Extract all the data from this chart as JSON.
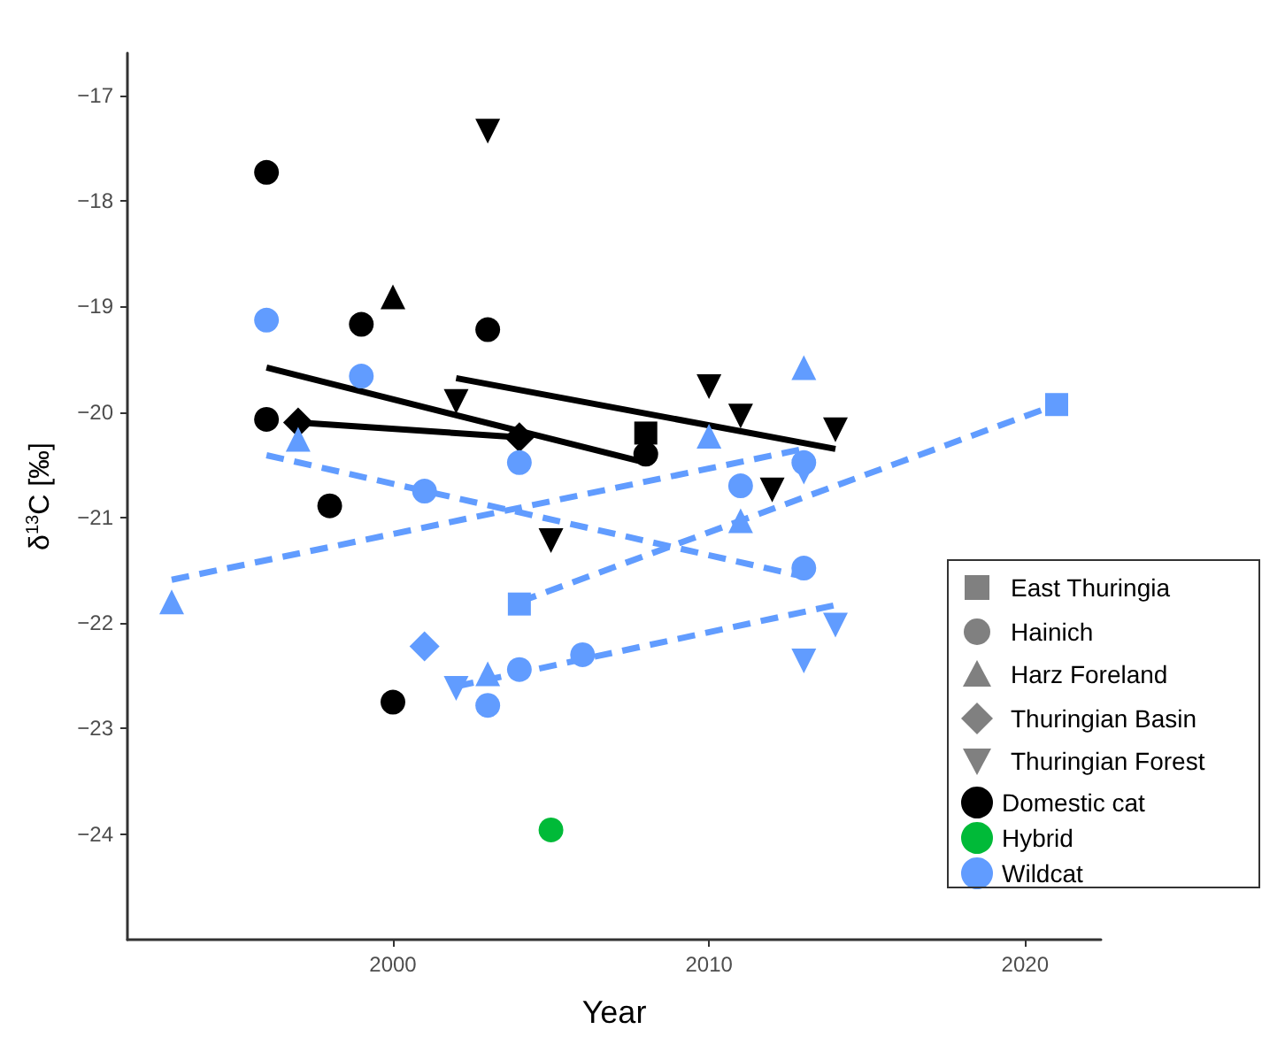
{
  "chart_data": {
    "type": "scatter",
    "xlabel": "Year",
    "ylabel": "δ$^{13}$C [‰]",
    "xlim": [
      1991.6,
      2022.4
    ],
    "ylim": [
      -25,
      -16.6
    ],
    "xticks": [
      2000,
      2010,
      2020
    ],
    "yticks": [
      -24,
      -23,
      -22,
      -21,
      -20,
      -19,
      -18,
      -17
    ],
    "grid": false,
    "legend": "bottom right",
    "annotations": [
      "East Thuringia",
      "Hainich",
      "Harz Foreland",
      "Thuringian Basin",
      "Thuringian Forest"
    ],
    "series": [
      {
        "type": "line",
        "color": "#000000",
        "line_style": "solid",
        "marker": "none",
        "x": [
          1996,
          2008
        ],
        "values": [
          -19.58,
          -20.48
        ]
      },
      {
        "type": "line",
        "color": "#000000",
        "line_style": "solid",
        "marker": "none",
        "x": [
          1997,
          2004
        ],
        "values": [
          -20.1,
          -20.24
        ]
      },
      {
        "type": "line",
        "color": "#000000",
        "line_style": "solid",
        "marker": "none",
        "x": [
          2002,
          2014
        ],
        "values": [
          -19.68,
          -20.35
        ]
      },
      {
        "type": "line",
        "color": "#619cff",
        "line_style": "dashed",
        "marker": "none",
        "x": [
          1996,
          2013
        ],
        "values": [
          -20.41,
          -21.56
        ]
      },
      {
        "type": "line",
        "color": "#619cff",
        "line_style": "dashed",
        "marker": "none",
        "x": [
          1993,
          2013
        ],
        "values": [
          -21.59,
          -20.35
        ]
      },
      {
        "type": "line",
        "color": "#619cff",
        "line_style": "dashed",
        "marker": "none",
        "x": [
          2004,
          2021
        ],
        "values": [
          -21.8,
          -19.93
        ]
      },
      {
        "type": "line",
        "color": "#619cff",
        "line_style": "dashed",
        "marker": "none",
        "x": [
          2002,
          2014
        ],
        "values": [
          -22.6,
          -21.83
        ]
      },
      {
        "name": "Domestic cat",
        "color": "#000000",
        "marker": "square",
        "x": [
          2008
        ],
        "values": [
          -20.2
        ]
      },
      {
        "color": "#000000",
        "marker": "circle",
        "x": [
          1996,
          1996,
          1999,
          1998,
          2003,
          2008,
          2000
        ],
        "values": [
          -17.73,
          -20.07,
          -19.17,
          -20.89,
          -19.22,
          -20.4,
          -22.75
        ]
      },
      {
        "color": "#000000",
        "marker": "triangle",
        "x": [
          2000
        ],
        "values": [
          -18.91
        ]
      },
      {
        "color": "#000000",
        "marker": "diamond",
        "x": [
          1997,
          2004
        ],
        "values": [
          -20.1,
          -20.24
        ]
      },
      {
        "color": "#000000",
        "marker": "triangle-down",
        "x": [
          2003,
          2002,
          2010,
          2011,
          2012,
          2014,
          2005
        ],
        "values": [
          -17.34,
          -19.9,
          -19.76,
          -20.04,
          -20.74,
          -20.17,
          -21.22
        ]
      },
      {
        "name": "Hybrid",
        "color": "#00ba38",
        "marker": "circle",
        "x": [
          2005
        ],
        "values": [
          -23.96
        ]
      },
      {
        "name": "Wildcat",
        "color": "#619cff",
        "marker": "square",
        "x": [
          2004,
          2021
        ],
        "values": [
          -21.82,
          -19.93
        ]
      },
      {
        "color": "#619cff",
        "marker": "circle",
        "x": [
          1996,
          1999,
          2001,
          2004,
          2011,
          2013,
          2004,
          2006,
          2003,
          2013
        ],
        "values": [
          -19.13,
          -19.66,
          -20.75,
          -20.48,
          -20.7,
          -21.48,
          -22.44,
          -22.3,
          -22.78,
          -20.48
        ]
      },
      {
        "color": "#619cff",
        "marker": "triangle",
        "x": [
          1993,
          1997,
          2003,
          2010,
          2011,
          2013
        ],
        "values": [
          -21.8,
          -20.26,
          -22.48,
          -20.23,
          -21.03,
          -19.58
        ]
      },
      {
        "color": "#619cff",
        "marker": "diamond",
        "x": [
          2001
        ],
        "values": [
          -22.22
        ]
      },
      {
        "color": "#619cff",
        "marker": "triangle-down",
        "x": [
          2002,
          2014,
          2013,
          2013
        ],
        "values": [
          -22.62,
          -22.02,
          -22.36,
          -20.57
        ]
      }
    ]
  }
}
